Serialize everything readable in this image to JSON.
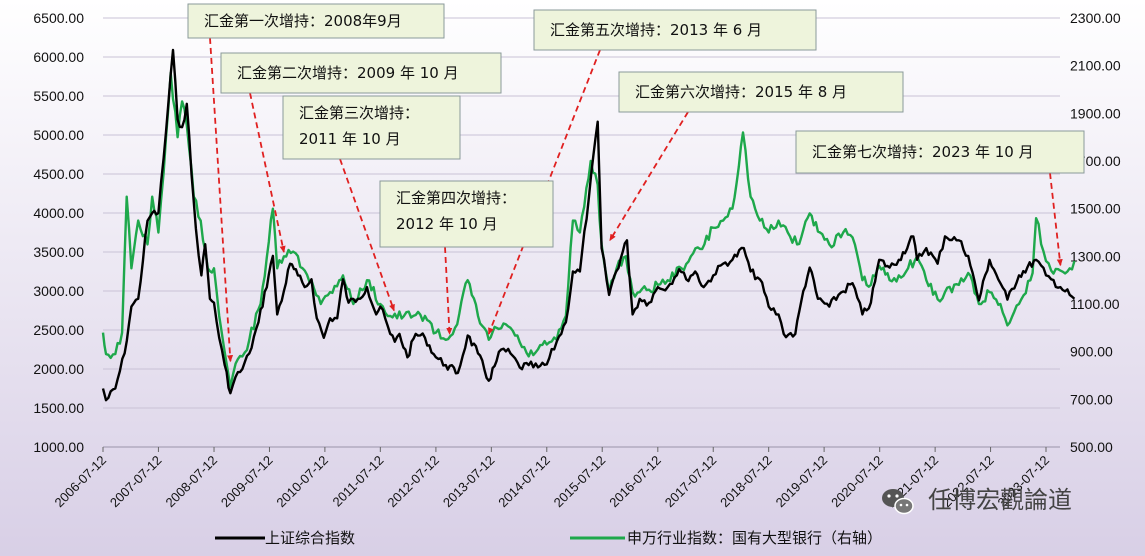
{
  "chart_data": {
    "type": "line",
    "dual_axis": true,
    "left_axis": {
      "ticks": [
        "1000.00",
        "1500.00",
        "2000.00",
        "2500.00",
        "3000.00",
        "3500.00",
        "4000.00",
        "4500.00",
        "5000.00",
        "5500.00",
        "6000.00",
        "6500.00"
      ],
      "ylim": [
        1000,
        6500
      ]
    },
    "right_axis": {
      "ticks": [
        "500.00",
        "700.00",
        "900.00",
        "1100.00",
        "1300.00",
        "1500.00",
        "1700.00",
        "1900.00",
        "2100.00",
        "2300.00"
      ],
      "ylim": [
        500,
        2300
      ]
    },
    "x_ticks": [
      "2006-07-12",
      "2007-07-12",
      "2008-07-12",
      "2009-07-12",
      "2010-07-12",
      "2011-07-12",
      "2012-07-12",
      "2013-07-12",
      "2014-07-12",
      "2015-07-12",
      "2016-07-12",
      "2017-07-12",
      "2018-07-12",
      "2019-07-12",
      "2020-07-12",
      "2021-07-12",
      "2022-07-12",
      "2023-07-12"
    ],
    "x_range": [
      "2006-07-12",
      "2024-01-15"
    ],
    "grid": true,
    "legend_position": "bottom",
    "series": [
      {
        "name": "上证综合指数",
        "axis": "left",
        "color": "#000000",
        "points": [
          [
            "2006-07-12",
            1750
          ],
          [
            "2006-08-01",
            1600
          ],
          [
            "2006-10-01",
            1750
          ],
          [
            "2006-12-01",
            2200
          ],
          [
            "2007-01-15",
            2800
          ],
          [
            "2007-03-01",
            2900
          ],
          [
            "2007-05-01",
            3900
          ],
          [
            "2007-06-01",
            4000
          ],
          [
            "2007-07-12",
            4000
          ],
          [
            "2007-08-15",
            4700
          ],
          [
            "2007-10-16",
            6090
          ],
          [
            "2007-11-15",
            5200
          ],
          [
            "2007-12-15",
            5100
          ],
          [
            "2008-01-15",
            5400
          ],
          [
            "2008-02-15",
            4500
          ],
          [
            "2008-03-15",
            3800
          ],
          [
            "2008-04-20",
            3200
          ],
          [
            "2008-05-15",
            3600
          ],
          [
            "2008-06-15",
            2900
          ],
          [
            "2008-07-12",
            2850
          ],
          [
            "2008-08-15",
            2400
          ],
          [
            "2008-09-20",
            2050
          ],
          [
            "2008-10-28",
            1690
          ],
          [
            "2008-12-01",
            1900
          ],
          [
            "2009-01-15",
            2000
          ],
          [
            "2009-03-01",
            2200
          ],
          [
            "2009-05-01",
            2600
          ],
          [
            "2009-08-04",
            3450
          ],
          [
            "2009-09-01",
            2700
          ],
          [
            "2009-10-15",
            3000
          ],
          [
            "2009-11-25",
            3350
          ],
          [
            "2010-01-15",
            3200
          ],
          [
            "2010-03-01",
            3050
          ],
          [
            "2010-04-15",
            3150
          ],
          [
            "2010-05-20",
            2650
          ],
          [
            "2010-07-05",
            2400
          ],
          [
            "2010-08-15",
            2650
          ],
          [
            "2010-10-01",
            2650
          ],
          [
            "2010-11-08",
            3150
          ],
          [
            "2010-12-15",
            2850
          ],
          [
            "2011-02-15",
            2900
          ],
          [
            "2011-04-15",
            3050
          ],
          [
            "2011-06-15",
            2700
          ],
          [
            "2011-07-12",
            2800
          ],
          [
            "2011-09-15",
            2450
          ],
          [
            "2011-10-15",
            2350
          ],
          [
            "2011-11-15",
            2450
          ],
          [
            "2012-01-06",
            2150
          ],
          [
            "2012-03-01",
            2450
          ],
          [
            "2012-05-01",
            2400
          ],
          [
            "2012-07-12",
            2150
          ],
          [
            "2012-09-15",
            2050
          ],
          [
            "2012-12-04",
            1950
          ],
          [
            "2013-02-06",
            2430
          ],
          [
            "2013-04-15",
            2200
          ],
          [
            "2013-06-25",
            1850
          ],
          [
            "2013-08-15",
            2100
          ],
          [
            "2013-09-15",
            2250
          ],
          [
            "2013-11-15",
            2200
          ],
          [
            "2014-01-15",
            2020
          ],
          [
            "2014-03-15",
            2050
          ],
          [
            "2014-05-15",
            2020
          ],
          [
            "2014-07-12",
            2060
          ],
          [
            "2014-09-15",
            2350
          ],
          [
            "2014-11-15",
            2600
          ],
          [
            "2014-12-31",
            3250
          ],
          [
            "2015-02-15",
            3250
          ],
          [
            "2015-04-15",
            4200
          ],
          [
            "2015-06-12",
            5170
          ],
          [
            "2015-07-08",
            3550
          ],
          [
            "2015-08-26",
            2950
          ],
          [
            "2015-09-15",
            3100
          ],
          [
            "2015-12-22",
            3650
          ],
          [
            "2016-01-28",
            2700
          ],
          [
            "2016-03-15",
            2900
          ],
          [
            "2016-05-15",
            2850
          ],
          [
            "2016-07-12",
            3050
          ],
          [
            "2016-09-15",
            3050
          ],
          [
            "2016-11-29",
            3280
          ],
          [
            "2017-01-15",
            3150
          ],
          [
            "2017-03-15",
            3250
          ],
          [
            "2017-05-10",
            3050
          ],
          [
            "2017-07-12",
            3200
          ],
          [
            "2017-09-15",
            3350
          ],
          [
            "2017-11-15",
            3400
          ],
          [
            "2018-01-29",
            3550
          ],
          [
            "2018-03-15",
            3250
          ],
          [
            "2018-05-15",
            3150
          ],
          [
            "2018-07-12",
            2800
          ],
          [
            "2018-09-15",
            2700
          ],
          [
            "2018-10-19",
            2450
          ],
          [
            "2019-01-03",
            2450
          ],
          [
            "2019-02-25",
            3000
          ],
          [
            "2019-04-08",
            3300
          ],
          [
            "2019-06-01",
            2900
          ],
          [
            "2019-08-15",
            2800
          ],
          [
            "2019-10-15",
            2950
          ],
          [
            "2020-01-15",
            3100
          ],
          [
            "2020-03-20",
            2700
          ],
          [
            "2020-05-15",
            2850
          ],
          [
            "2020-07-09",
            3400
          ],
          [
            "2020-09-15",
            3300
          ],
          [
            "2020-11-15",
            3400
          ],
          [
            "2021-02-18",
            3700
          ],
          [
            "2021-03-15",
            3400
          ],
          [
            "2021-05-15",
            3550
          ],
          [
            "2021-07-28",
            3350
          ],
          [
            "2021-09-15",
            3700
          ],
          [
            "2021-12-15",
            3650
          ],
          [
            "2022-02-15",
            3450
          ],
          [
            "2022-04-26",
            2880
          ],
          [
            "2022-07-05",
            3400
          ],
          [
            "2022-09-15",
            3100
          ],
          [
            "2022-10-31",
            2890
          ],
          [
            "2023-01-15",
            3200
          ],
          [
            "2023-05-08",
            3400
          ],
          [
            "2023-07-12",
            3200
          ],
          [
            "2023-08-15",
            3150
          ],
          [
            "2023-10-15",
            3050
          ],
          [
            "2023-12-15",
            2950
          ],
          [
            "2024-01-15",
            2900
          ]
        ]
      },
      {
        "name": "申万行业指数：国有大型银行（右轴）",
        "axis": "right",
        "color": "#1ea84b",
        "points": [
          [
            "2006-07-12",
            980
          ],
          [
            "2006-08-01",
            890
          ],
          [
            "2006-10-01",
            890
          ],
          [
            "2006-11-15",
            980
          ],
          [
            "2006-12-15",
            1550
          ],
          [
            "2007-01-15",
            1250
          ],
          [
            "2007-03-01",
            1450
          ],
          [
            "2007-05-01",
            1350
          ],
          [
            "2007-06-01",
            1550
          ],
          [
            "2007-07-12",
            1400
          ],
          [
            "2007-08-15",
            1650
          ],
          [
            "2007-10-01",
            2070
          ],
          [
            "2007-11-15",
            1800
          ],
          [
            "2007-12-15",
            1950
          ],
          [
            "2008-01-15",
            1850
          ],
          [
            "2008-03-01",
            1550
          ],
          [
            "2008-04-15",
            1450
          ],
          [
            "2008-06-01",
            1250
          ],
          [
            "2008-07-12",
            1250
          ],
          [
            "2008-08-15",
            1050
          ],
          [
            "2008-10-28",
            750
          ],
          [
            "2008-12-01",
            850
          ],
          [
            "2009-01-15",
            880
          ],
          [
            "2009-03-01",
            950
          ],
          [
            "2009-05-15",
            1100
          ],
          [
            "2009-08-04",
            1500
          ],
          [
            "2009-09-01",
            1250
          ],
          [
            "2009-10-15",
            1300
          ],
          [
            "2009-12-15",
            1320
          ],
          [
            "2010-02-15",
            1250
          ],
          [
            "2010-04-15",
            1200
          ],
          [
            "2010-06-15",
            1100
          ],
          [
            "2010-08-15",
            1150
          ],
          [
            "2010-10-15",
            1200
          ],
          [
            "2010-11-08",
            1220
          ],
          [
            "2011-01-15",
            1100
          ],
          [
            "2011-04-15",
            1200
          ],
          [
            "2011-07-12",
            1100
          ],
          [
            "2011-09-15",
            1050
          ],
          [
            "2011-12-15",
            1050
          ],
          [
            "2012-02-15",
            1050
          ],
          [
            "2012-05-01",
            1050
          ],
          [
            "2012-07-12",
            980
          ],
          [
            "2012-09-15",
            950
          ],
          [
            "2012-11-15",
            1000
          ],
          [
            "2013-02-06",
            1200
          ],
          [
            "2013-04-15",
            1050
          ],
          [
            "2013-06-25",
            950
          ],
          [
            "2013-08-15",
            1000
          ],
          [
            "2013-11-15",
            1000
          ],
          [
            "2014-01-15",
            940
          ],
          [
            "2014-03-15",
            880
          ],
          [
            "2014-05-15",
            910
          ],
          [
            "2014-07-12",
            930
          ],
          [
            "2014-09-15",
            950
          ],
          [
            "2014-11-15",
            1050
          ],
          [
            "2014-12-31",
            1450
          ],
          [
            "2015-02-15",
            1400
          ],
          [
            "2015-04-27",
            1700
          ],
          [
            "2015-06-12",
            1600
          ],
          [
            "2015-07-08",
            1350
          ],
          [
            "2015-08-26",
            1150
          ],
          [
            "2015-10-15",
            1250
          ],
          [
            "2015-12-15",
            1300
          ],
          [
            "2016-01-28",
            1150
          ],
          [
            "2016-03-15",
            1150
          ],
          [
            "2016-05-15",
            1160
          ],
          [
            "2016-07-12",
            1180
          ],
          [
            "2016-09-15",
            1200
          ],
          [
            "2016-12-15",
            1250
          ],
          [
            "2017-02-15",
            1300
          ],
          [
            "2017-05-15",
            1350
          ],
          [
            "2017-07-12",
            1420
          ],
          [
            "2017-09-15",
            1450
          ],
          [
            "2017-11-15",
            1500
          ],
          [
            "2018-01-24",
            1820
          ],
          [
            "2018-03-15",
            1550
          ],
          [
            "2018-05-15",
            1450
          ],
          [
            "2018-07-12",
            1400
          ],
          [
            "2018-09-15",
            1450
          ],
          [
            "2018-11-15",
            1400
          ],
          [
            "2019-01-15",
            1350
          ],
          [
            "2019-04-08",
            1480
          ],
          [
            "2019-06-15",
            1400
          ],
          [
            "2019-08-15",
            1350
          ],
          [
            "2019-11-15",
            1400
          ],
          [
            "2020-01-15",
            1380
          ],
          [
            "2020-03-20",
            1200
          ],
          [
            "2020-05-15",
            1180
          ],
          [
            "2020-07-09",
            1260
          ],
          [
            "2020-09-15",
            1200
          ],
          [
            "2020-11-15",
            1220
          ],
          [
            "2021-01-15",
            1250
          ],
          [
            "2021-03-15",
            1300
          ],
          [
            "2021-05-15",
            1200
          ],
          [
            "2021-07-28",
            1120
          ],
          [
            "2021-09-15",
            1150
          ],
          [
            "2021-12-15",
            1180
          ],
          [
            "2022-02-15",
            1230
          ],
          [
            "2022-04-26",
            1100
          ],
          [
            "2022-07-05",
            1150
          ],
          [
            "2022-09-15",
            1100
          ],
          [
            "2022-10-31",
            1010
          ],
          [
            "2023-01-15",
            1100
          ],
          [
            "2023-04-15",
            1230
          ],
          [
            "2023-05-08",
            1460
          ],
          [
            "2023-07-12",
            1280
          ],
          [
            "2023-08-15",
            1240
          ],
          [
            "2023-10-15",
            1240
          ],
          [
            "2023-12-15",
            1250
          ],
          [
            "2024-01-15",
            1280
          ]
        ]
      }
    ],
    "annotations": [
      {
        "lines": [
          "汇金第一次增持：2008年9月"
        ],
        "target": [
          "2008-10-28",
          2100
        ]
      },
      {
        "lines": [
          "汇金第二次增持：2009 年 10 月"
        ],
        "target": [
          "2009-10-15",
          3500
        ]
      },
      {
        "lines": [
          "汇金第三次增持：",
          "2011 年 10 月"
        ],
        "target": [
          "2011-10-10",
          2750
        ]
      },
      {
        "lines": [
          "汇金第四次增持：",
          "2012 年 10 月"
        ],
        "target": [
          "2012-10-10",
          2450
        ]
      },
      {
        "lines": [
          "汇金第五次增持：2013 年 6 月"
        ],
        "target": [
          "2013-06-25",
          2450
        ]
      },
      {
        "lines": [
          "汇金第六次增持：2015 年 8 月"
        ],
        "target": [
          "2015-09-01",
          3650
        ]
      },
      {
        "lines": [
          "汇金第七次增持：2023 年 10 月"
        ],
        "target": [
          "2023-10-15",
          3330
        ]
      }
    ]
  },
  "watermark": "任博宏觀論道"
}
